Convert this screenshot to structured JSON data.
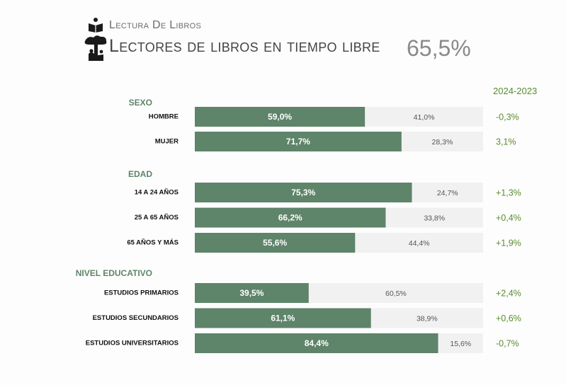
{
  "header": {
    "subtitle": "Lectura De Libros",
    "title": "Lectores de libros en tiempo libre",
    "total": "65,5%",
    "period": "2024-2023"
  },
  "colors": {
    "bar": "#5e8469",
    "remainder": "#f1f1f1",
    "section": "#5e8469",
    "change": "#5a8c2e"
  },
  "chart_data": {
    "type": "bar",
    "orientation": "horizontal",
    "stacked_percent": true,
    "series": [
      {
        "name": "",
        "key": "readers"
      },
      {
        "name": "",
        "key": "non_readers"
      }
    ],
    "groups": [
      {
        "name": "SEXO",
        "rows": [
          {
            "label": "HOMBRE",
            "value": 59.0,
            "value_label": "59,0%",
            "rest": 41.0,
            "rest_label": "41,0%",
            "change": "-0,3%"
          },
          {
            "label": "MUJER",
            "value": 71.7,
            "value_label": "71,7%",
            "rest": 28.3,
            "rest_label": "28,3%",
            "change": "3,1%"
          }
        ]
      },
      {
        "name": "EDAD",
        "rows": [
          {
            "label": "14 A 24 AÑOS",
            "value": 75.3,
            "value_label": "75,3%",
            "rest": 24.7,
            "rest_label": "24,7%",
            "change": "+1,3%"
          },
          {
            "label": "25 A 65 AÑOS",
            "value": 66.2,
            "value_label": "66,2%",
            "rest": 33.8,
            "rest_label": "33,8%",
            "change": "+0,4%"
          },
          {
            "label": "65 AÑOS Y MÁS",
            "value": 55.6,
            "value_label": "55,6%",
            "rest": 44.4,
            "rest_label": "44,4%",
            "change": "+1,9%"
          }
        ]
      },
      {
        "name": "NIVEL EDUCATIVO",
        "rows": [
          {
            "label": "ESTUDIOS PRIMARIOS",
            "value": 39.5,
            "value_label": "39,5%",
            "rest": 60.5,
            "rest_label": "60,5%",
            "change": "+2,4%"
          },
          {
            "label": "ESTUDIOS SECUNDARIOS",
            "value": 61.1,
            "value_label": "61,1%",
            "rest": 38.9,
            "rest_label": "38,9%",
            "change": "+0,6%"
          },
          {
            "label": "ESTUDIOS UNIVERSITARIOS",
            "value": 84.4,
            "value_label": "84,4%",
            "rest": 15.6,
            "rest_label": "15,6%",
            "change": "-0,7%"
          }
        ]
      }
    ],
    "xlim": [
      0,
      100
    ],
    "grid": false,
    "legend": "none"
  }
}
